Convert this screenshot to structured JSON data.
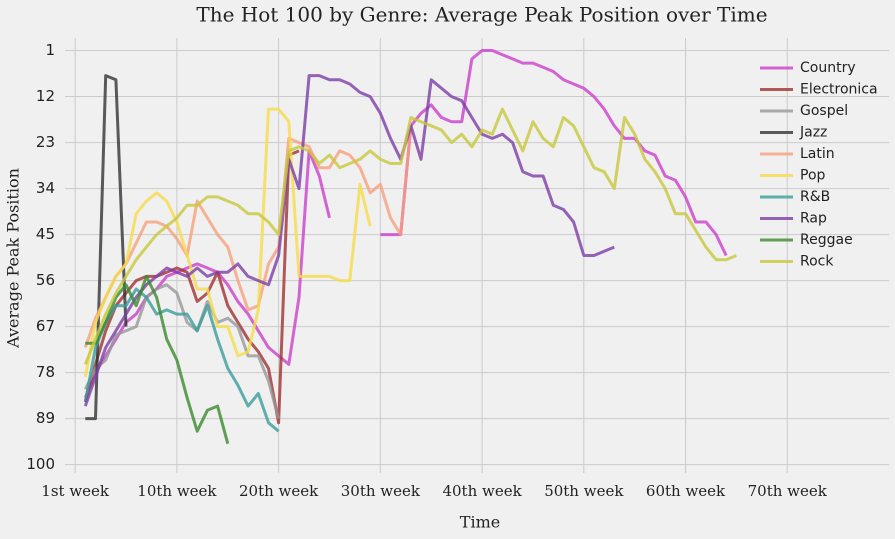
{
  "chart_data": {
    "type": "line",
    "title": "The Hot 100 by Genre: Average Peak Position over Time",
    "xlabel": "Time",
    "ylabel": "Average Peak Position",
    "x": [
      1,
      2,
      3,
      4,
      5,
      6,
      7,
      8,
      9,
      10,
      11,
      12,
      13,
      14,
      15,
      16,
      17,
      18,
      19,
      20,
      21,
      22,
      23,
      24,
      25,
      26,
      27,
      28,
      29,
      30,
      31,
      32,
      33,
      34,
      35,
      36,
      37,
      38,
      39,
      40,
      41,
      42,
      43,
      44,
      45,
      46,
      47,
      48,
      49,
      50,
      51,
      52,
      53,
      54,
      55,
      56,
      57,
      58,
      59,
      60,
      61,
      62,
      63,
      64,
      65
    ],
    "xlim": [
      -1,
      80
    ],
    "xticks": [
      {
        "value": 0,
        "label": "1st week"
      },
      {
        "value": 10,
        "label": "10th week"
      },
      {
        "value": 20,
        "label": "20th week"
      },
      {
        "value": 30,
        "label": "30th week"
      },
      {
        "value": 40,
        "label": "40th week"
      },
      {
        "value": 50,
        "label": "50th week"
      },
      {
        "value": 60,
        "label": "60th week"
      },
      {
        "value": 70,
        "label": "70th week"
      }
    ],
    "ylim": [
      102,
      -2
    ],
    "yticks": [
      1,
      12,
      23,
      34,
      45,
      56,
      67,
      78,
      89,
      100
    ],
    "grid": true,
    "legend": "upper right",
    "series": [
      {
        "name": "Country",
        "color": "#cc3fcc",
        "values": [
          84,
          78,
          74,
          70,
          66,
          64,
          60,
          58,
          55,
          54,
          53,
          52,
          53,
          54,
          57,
          61,
          64,
          68,
          72,
          74,
          76,
          60,
          25,
          31,
          41,
          null,
          null,
          null,
          null,
          45,
          45,
          45,
          19,
          16,
          14,
          17,
          18,
          18,
          3,
          1,
          1,
          2,
          3,
          4,
          4,
          5,
          6,
          8,
          9,
          10,
          12,
          15,
          19,
          22,
          22,
          25,
          26,
          31,
          32,
          36,
          42,
          42,
          45,
          50,
          null
        ]
      },
      {
        "name": "Electronica",
        "color": "#a03232",
        "values": [
          85,
          76,
          68,
          62,
          59,
          56,
          55,
          55,
          54,
          53,
          54,
          61,
          59,
          54,
          62,
          66,
          70,
          73,
          77,
          90,
          26,
          25,
          null,
          null,
          null,
          null,
          null,
          null,
          null,
          null,
          null,
          null,
          null,
          null,
          null,
          null,
          null,
          null,
          null,
          null,
          null,
          null,
          null,
          null,
          null,
          null,
          null,
          null,
          null,
          null,
          null,
          null,
          null,
          null,
          null,
          null,
          null,
          null,
          null,
          null,
          null,
          null,
          null,
          null,
          null
        ]
      },
      {
        "name": "Gospel",
        "color": "#999999",
        "values": [
          82,
          77,
          75,
          69,
          68,
          67,
          60,
          58,
          57,
          59,
          66,
          68,
          61,
          66,
          65,
          67,
          74,
          74,
          80,
          89,
          null,
          null,
          null,
          null,
          null,
          null,
          null,
          null,
          null,
          null,
          null,
          null,
          null,
          null,
          null,
          null,
          null,
          null,
          null,
          null,
          null,
          null,
          null,
          null,
          null,
          null,
          null,
          null,
          null,
          null,
          null,
          null,
          null,
          null,
          null,
          null,
          null,
          null,
          null,
          null,
          null,
          null,
          null,
          null,
          null
        ]
      },
      {
        "name": "Jazz",
        "color": "#333333",
        "values": [
          89,
          89,
          7,
          8,
          67,
          null,
          null,
          null,
          null,
          null,
          null,
          null,
          null,
          null,
          null,
          null,
          null,
          null,
          null,
          null,
          null,
          null,
          null,
          null,
          null,
          null,
          null,
          null,
          null,
          null,
          null,
          null,
          null,
          null,
          null,
          null,
          null,
          null,
          null,
          null,
          null,
          null,
          null,
          null,
          null,
          null,
          null,
          null,
          null,
          null,
          null,
          null,
          null,
          null,
          null,
          null,
          null,
          null,
          null,
          null,
          null,
          null,
          null,
          null,
          null
        ]
      },
      {
        "name": "Latin",
        "color": "#f7a07c",
        "values": [
          72,
          65,
          60,
          55,
          52,
          47,
          42,
          42,
          43,
          46,
          50,
          37,
          41,
          45,
          48,
          56,
          63,
          62,
          52,
          48,
          22,
          23,
          24,
          29,
          29,
          25,
          26,
          29,
          35,
          33,
          41,
          45,
          19,
          null,
          null,
          null,
          null,
          null,
          null,
          null,
          null,
          null,
          null,
          null,
          null,
          null,
          null,
          null,
          null,
          null,
          null,
          null,
          null,
          null,
          null,
          null,
          null,
          null,
          null,
          null,
          null,
          null,
          null,
          null,
          null
        ]
      },
      {
        "name": "Pop",
        "color": "#f5dc4a",
        "values": [
          79,
          66,
          60,
          55,
          52,
          40,
          37,
          35,
          37,
          42,
          50,
          58,
          58,
          67,
          67,
          74,
          73,
          63,
          15,
          15,
          18,
          55,
          55,
          55,
          55,
          56,
          56,
          33,
          43,
          null,
          null,
          null,
          null,
          null,
          null,
          null,
          null,
          null,
          null,
          null,
          null,
          null,
          null,
          null,
          null,
          null,
          null,
          null,
          null,
          null,
          null,
          null,
          null,
          null,
          null,
          null,
          null,
          null,
          null,
          null,
          null,
          null,
          null,
          null,
          null
        ]
      },
      {
        "name": "R&B",
        "color": "#3a9e9c",
        "values": [
          85,
          72,
          66,
          62,
          62,
          58,
          60,
          64,
          63,
          64,
          64,
          68,
          62,
          70,
          77,
          81,
          86,
          83,
          90,
          92,
          null,
          null,
          null,
          null,
          null,
          null,
          null,
          null,
          null,
          null,
          null,
          null,
          null,
          null,
          null,
          null,
          null,
          null,
          null,
          null,
          null,
          null,
          null,
          null,
          null,
          null,
          null,
          null,
          null,
          null,
          null,
          null,
          null,
          null,
          null,
          null,
          null,
          null,
          null,
          null,
          null,
          null,
          null,
          null,
          null
        ]
      },
      {
        "name": "Rap",
        "color": "#7d3fa6",
        "values": [
          86,
          79,
          72,
          68,
          64,
          60,
          57,
          55,
          53,
          54,
          55,
          53,
          55,
          54,
          54,
          52,
          55,
          56,
          57,
          50,
          27,
          34,
          7,
          7,
          8,
          8,
          9,
          11,
          12,
          16,
          22,
          27,
          19,
          27,
          8,
          10,
          12,
          13,
          17,
          21,
          22,
          21,
          23,
          30,
          31,
          31,
          38,
          39,
          42,
          50,
          50,
          49,
          48,
          null,
          null,
          null,
          null,
          null,
          null,
          null,
          null,
          null,
          null,
          null,
          null
        ]
      },
      {
        "name": "Reggae",
        "color": "#3b8a2e",
        "values": [
          71,
          71,
          66,
          60,
          57,
          62,
          55,
          60,
          70,
          75,
          84,
          92,
          87,
          86,
          95,
          null,
          null,
          null,
          null,
          null,
          null,
          null,
          null,
          null,
          null,
          null,
          null,
          null,
          null,
          null,
          null,
          null,
          null,
          null,
          null,
          null,
          null,
          null,
          null,
          null,
          null,
          null,
          null,
          null,
          null,
          null,
          null,
          null,
          null,
          null,
          null,
          null,
          null,
          null,
          null,
          null,
          null,
          null,
          null,
          null,
          null,
          null,
          null,
          null,
          null
        ]
      },
      {
        "name": "Rock",
        "color": "#c8c83c",
        "values": [
          76,
          70,
          64,
          59,
          55,
          51,
          48,
          45,
          43,
          41,
          38,
          38,
          36,
          36,
          37,
          38,
          40,
          40,
          42,
          45,
          25,
          24,
          25,
          28,
          26,
          29,
          28,
          27,
          25,
          27,
          28,
          28,
          17,
          18,
          19,
          20,
          23,
          21,
          24,
          20,
          21,
          15,
          20,
          25,
          18,
          22,
          24,
          17,
          19,
          24,
          29,
          30,
          34,
          17,
          21,
          27,
          30,
          34,
          40,
          40,
          44,
          48,
          51,
          51,
          50
        ]
      }
    ]
  }
}
